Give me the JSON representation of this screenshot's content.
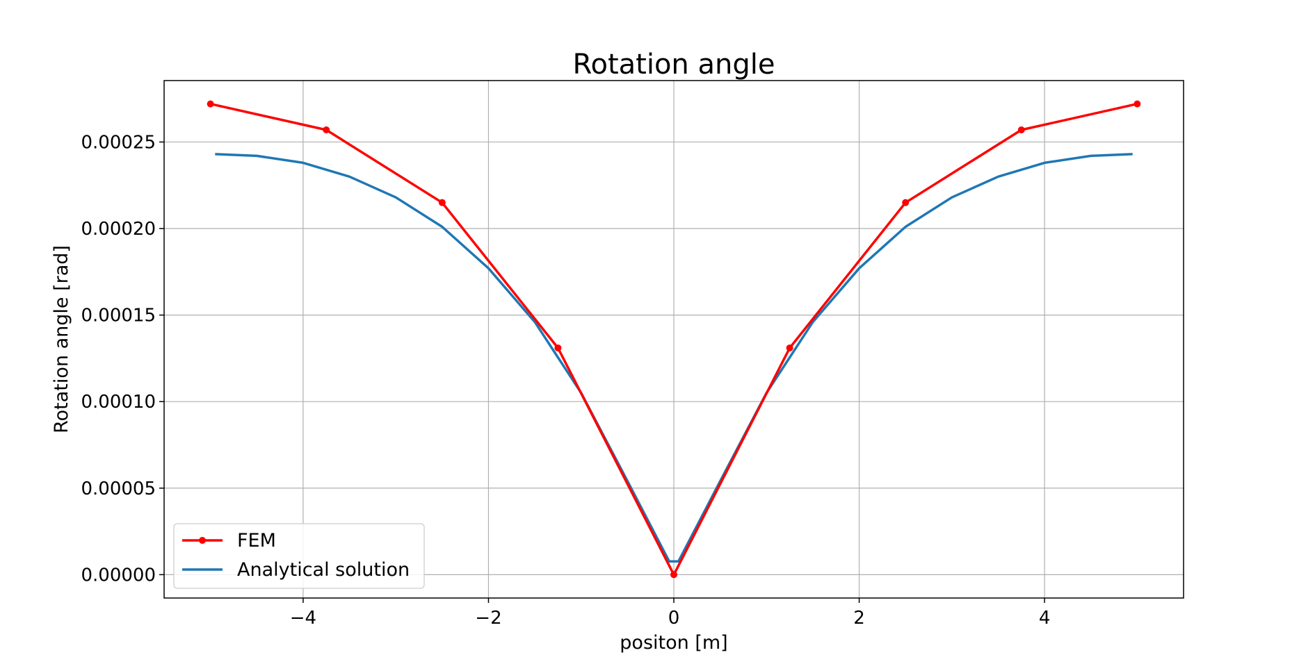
{
  "chart_data": {
    "type": "line",
    "title": "Rotation angle",
    "xlabel": "positon [m]",
    "ylabel": "Rotation angle [rad]",
    "xlim": [
      -5.5,
      5.5
    ],
    "ylim": [
      -1.35e-05,
      0.0002855
    ],
    "x_ticks": [
      -4,
      -2,
      0,
      2,
      4
    ],
    "x_tick_labels": [
      "−4",
      "−2",
      "0",
      "2",
      "4"
    ],
    "y_ticks": [
      0,
      5e-05,
      0.0001,
      0.00015,
      0.0002,
      0.00025
    ],
    "y_tick_labels": [
      "0.00000",
      "0.00005",
      "0.00010",
      "0.00015",
      "0.00020",
      "0.00025"
    ],
    "grid": true,
    "legend_position": "lower-left",
    "series": [
      {
        "name": "FEM",
        "color": "#ff0000",
        "marker": "circle",
        "x": [
          -5,
          -3.75,
          -2.5,
          -1.25,
          0,
          1.25,
          2.5,
          3.75,
          5
        ],
        "y": [
          0.000272,
          0.000257,
          0.000215,
          0.000131,
          0.0,
          0.000131,
          0.000215,
          0.000257,
          0.000272
        ]
      },
      {
        "name": "Analytical solution",
        "color": "#1f77b4",
        "marker": "none",
        "x": [
          -4.95,
          -4.5,
          -4.0,
          -3.5,
          -3.0,
          -2.5,
          -2.0,
          -1.5,
          -1.0,
          -0.5,
          -0.05,
          0.0,
          0.05,
          0.5,
          1.0,
          1.5,
          2.0,
          2.5,
          3.0,
          3.5,
          4.0,
          4.5,
          4.95
        ],
        "y": [
          0.000243,
          0.000242,
          0.000238,
          0.00023,
          0.000218,
          0.000201,
          0.000177,
          0.000146,
          0.000105,
          5.4e-05,
          7.7e-06,
          7.7e-06,
          7.7e-06,
          5.4e-05,
          0.000105,
          0.000146,
          0.000177,
          0.000201,
          0.000218,
          0.00023,
          0.000238,
          0.000242,
          0.000243
        ]
      }
    ]
  }
}
